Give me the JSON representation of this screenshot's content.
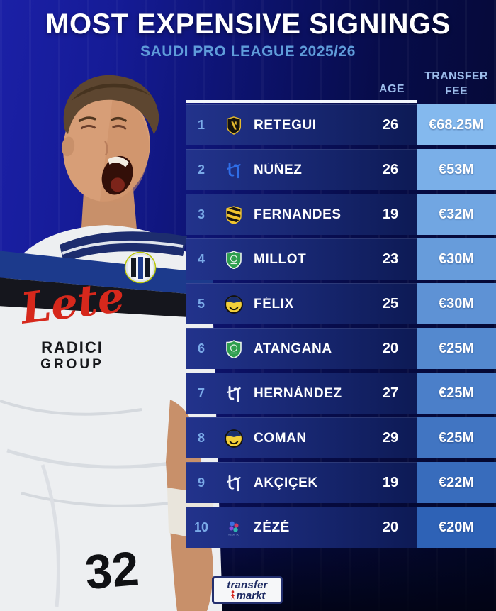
{
  "header": {
    "title": "MOST EXPENSIVE SIGNINGS",
    "subtitle": "SAUDI PRO LEAGUE 2025/26"
  },
  "table": {
    "headers": {
      "age": "AGE",
      "fee_line1": "TRANSFER",
      "fee_line2": "FEE"
    },
    "rows": [
      {
        "rank": "1",
        "club": "Al-Qadsiah",
        "badge": "qadsiah",
        "player": "RETEGUI",
        "age": "26",
        "fee": "€68.25M"
      },
      {
        "rank": "2",
        "club": "Al-Hilal",
        "badge": "hilal-blue",
        "player": "NÚÑEZ",
        "age": "26",
        "fee": "€53M"
      },
      {
        "rank": "3",
        "club": "Al-Ittihad",
        "badge": "ittihad",
        "player": "FERNANDES",
        "age": "19",
        "fee": "€32M"
      },
      {
        "rank": "4",
        "club": "Al-Ahli",
        "badge": "ahli",
        "player": "MILLOT",
        "age": "23",
        "fee": "€30M"
      },
      {
        "rank": "5",
        "club": "Al-Nassr",
        "badge": "nassr",
        "player": "FÉLIX",
        "age": "25",
        "fee": "€30M"
      },
      {
        "rank": "6",
        "club": "Al-Ahli",
        "badge": "ahli",
        "player": "ATANGANA",
        "age": "20",
        "fee": "€25M"
      },
      {
        "rank": "7",
        "club": "Al-Hilal",
        "badge": "hilal-white",
        "player": "HERNÁNDEZ",
        "age": "27",
        "fee": "€25M"
      },
      {
        "rank": "8",
        "club": "Al-Nassr",
        "badge": "nassr",
        "player": "COMAN",
        "age": "29",
        "fee": "€25M"
      },
      {
        "rank": "9",
        "club": "Al-Hilal",
        "badge": "hilal-white",
        "player": "AKÇIÇEK",
        "age": "19",
        "fee": "€22M"
      },
      {
        "rank": "10",
        "club": "NEOM SC",
        "badge": "neom",
        "player": "ZÉZÉ",
        "age": "20",
        "fee": "€20M"
      }
    ]
  },
  "player_image": {
    "sponsor": "Lete",
    "sponsor_secondary_line1": "RADICI",
    "sponsor_secondary_line2": "GROUP",
    "shirt_number": "32"
  },
  "footer": {
    "logo_line1": "transfer",
    "logo_line2": "markt"
  },
  "colors": {
    "fee_cell_top": "#84b9ee",
    "fee_cell_bottom": "#2e62b6",
    "accent_header_label": "#9cbcea",
    "accent_subtitle": "#5f9cda",
    "accent_rank": "#7aaae8"
  }
}
